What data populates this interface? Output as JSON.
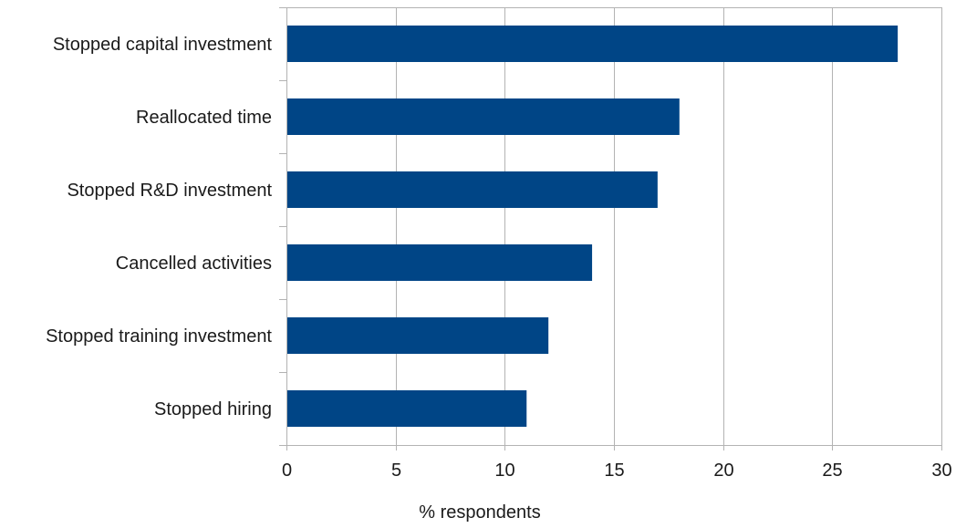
{
  "chart_data": {
    "type": "bar",
    "orientation": "horizontal",
    "title": "",
    "xlabel": "% respondents",
    "ylabel": "",
    "categories": [
      "Stopped capital investment",
      "Reallocated time",
      "Stopped R&D investment",
      "Cancelled activities",
      "Stopped training investment",
      "Stopped hiring"
    ],
    "values": [
      28,
      18,
      17,
      14,
      12,
      11
    ],
    "xlim": [
      0,
      30
    ],
    "xticks": [
      0,
      5,
      10,
      15,
      20,
      25,
      30
    ],
    "grid": true,
    "legend": "none",
    "bar_color": "#004586",
    "grid_color": "#b3b3b3"
  }
}
